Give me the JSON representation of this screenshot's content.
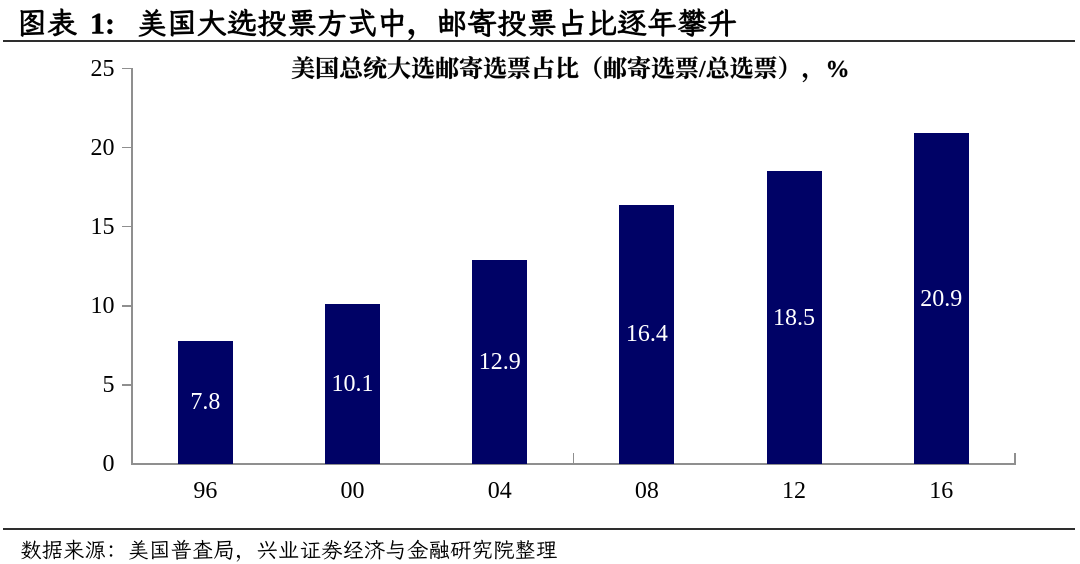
{
  "header": {
    "label": "图表 1:",
    "title": "美国大选投票方式中，邮寄投票占比逐年攀升",
    "full_title": "图表 1: 美国大选投票方式中，邮寄投票占比逐年攀升"
  },
  "chart_data": {
    "type": "bar",
    "title": "美国总统大选邮寄选票占比（邮寄选票/总选票），%",
    "categories": [
      "96",
      "00",
      "04",
      "08",
      "12",
      "16"
    ],
    "values": [
      7.8,
      10.1,
      12.9,
      16.4,
      18.5,
      20.9
    ],
    "value_labels": [
      "7.8",
      "10.1",
      "12.9",
      "16.4",
      "18.5",
      "20.9"
    ],
    "xlabel": "",
    "ylabel": "",
    "ylim": [
      0,
      25
    ],
    "yticks": [
      "0",
      "5",
      "10",
      "15",
      "20",
      "25"
    ],
    "grid": "off",
    "legend": "none",
    "bar_color": "#000266",
    "bar_label_color": "#ffffff",
    "axis_color": "#8f8f8f"
  },
  "footer": {
    "source": "数据来源：美国普查局，兴业证券经济与金融研究院整理"
  }
}
